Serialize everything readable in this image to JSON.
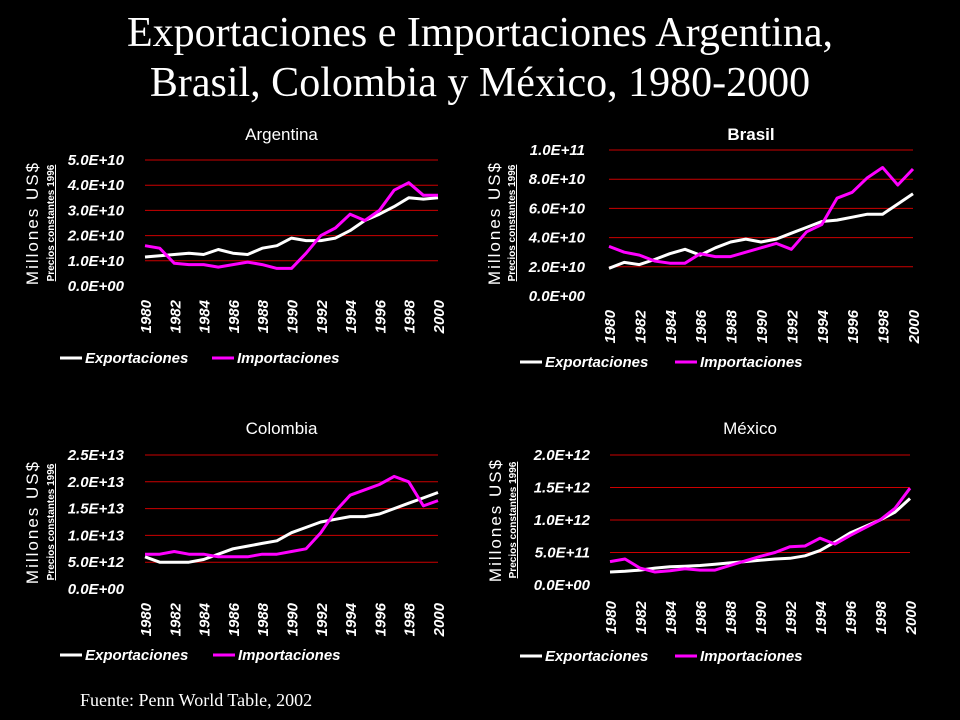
{
  "title_line1": "Exportaciones e Importaciones Argentina,",
  "title_line2": "Brasil, Colombia y México, 1980-2000",
  "source": "Fuente: Penn World Table, 2002",
  "colors": {
    "background": "#000000",
    "exportaciones": "#ffffff",
    "importaciones": "#ff00ff",
    "gridline": "#cc0000"
  },
  "chart_data": [
    {
      "type": "line",
      "title": "Argentina",
      "ylabel": "Millones US$",
      "ylabel_sub": "Precios constantes 1996",
      "x": [
        1980,
        1981,
        1982,
        1983,
        1984,
        1985,
        1986,
        1987,
        1988,
        1989,
        1990,
        1991,
        1992,
        1993,
        1994,
        1995,
        1996,
        1997,
        1998,
        1999,
        2000
      ],
      "xticks": [
        "1980",
        "1982",
        "1984",
        "1986",
        "1988",
        "1990",
        "1992",
        "1994",
        "1996",
        "1998",
        "2000"
      ],
      "yticks": [
        "0.0E+00",
        "1.0E+10",
        "2.0E+10",
        "3.0E+10",
        "4.0E+10",
        "5.0E+10"
      ],
      "ylim": [
        0,
        50000000000
      ],
      "series": [
        {
          "name": "Exportaciones",
          "values": [
            11500000000,
            12000000000,
            12500000000,
            13000000000,
            12500000000,
            14500000000,
            13000000000,
            12500000000,
            15000000000,
            16000000000,
            19000000000,
            18000000000,
            18000000000,
            19000000000,
            22000000000,
            26000000000,
            28500000000,
            31500000000,
            35000000000,
            34500000000,
            35000000000
          ]
        },
        {
          "name": "Importaciones",
          "values": [
            16000000000,
            15000000000,
            9000000000,
            8500000000,
            8500000000,
            7500000000,
            8500000000,
            9500000000,
            8500000000,
            7000000000,
            7000000000,
            13000000000,
            20000000000,
            23000000000,
            28500000000,
            26000000000,
            30000000000,
            38000000000,
            41000000000,
            36000000000,
            36000000000
          ]
        }
      ]
    },
    {
      "type": "line",
      "title": "Brasil",
      "ylabel": "Millones US$",
      "ylabel_sub": "Precios constantes 1996",
      "x": [
        1980,
        1981,
        1982,
        1983,
        1984,
        1985,
        1986,
        1987,
        1988,
        1989,
        1990,
        1991,
        1992,
        1993,
        1994,
        1995,
        1996,
        1997,
        1998,
        1999,
        2000
      ],
      "xticks": [
        "1980",
        "1982",
        "1984",
        "1986",
        "1988",
        "1990",
        "1992",
        "1994",
        "1996",
        "1998",
        "2000"
      ],
      "yticks": [
        "0.0E+00",
        "2.0E+10",
        "4.0E+10",
        "6.0E+10",
        "8.0E+10",
        "1.0E+11"
      ],
      "ylim": [
        0,
        100000000000
      ],
      "series": [
        {
          "name": "Exportaciones",
          "values": [
            19000000000,
            23000000000,
            21500000000,
            25000000000,
            29000000000,
            32000000000,
            28000000000,
            33000000000,
            37000000000,
            39000000000,
            37000000000,
            39000000000,
            43000000000,
            47000000000,
            51000000000,
            52000000000,
            54000000000,
            56000000000,
            56000000000,
            63000000000,
            70000000000
          ]
        },
        {
          "name": "Importaciones",
          "values": [
            34000000000,
            30000000000,
            28000000000,
            24000000000,
            22500000000,
            22500000000,
            29000000000,
            27000000000,
            27000000000,
            30000000000,
            33000000000,
            36000000000,
            32000000000,
            44000000000,
            49000000000,
            67000000000,
            71000000000,
            81000000000,
            88000000000,
            76000000000,
            87000000000
          ]
        }
      ]
    },
    {
      "type": "line",
      "title": "Colombia",
      "ylabel": "Millones US$",
      "ylabel_sub": "Precios constantes 1996",
      "x": [
        1980,
        1981,
        1982,
        1983,
        1984,
        1985,
        1986,
        1987,
        1988,
        1989,
        1990,
        1991,
        1992,
        1993,
        1994,
        1995,
        1996,
        1997,
        1998,
        1999,
        2000
      ],
      "xticks": [
        "1980",
        "1982",
        "1984",
        "1986",
        "1988",
        "1990",
        "1992",
        "1994",
        "1996",
        "1998",
        "2000"
      ],
      "yticks": [
        "0.0E+00",
        "5.0E+12",
        "1.0E+13",
        "1.5E+13",
        "2.0E+13",
        "2.5E+13"
      ],
      "ylim": [
        0,
        25000000000000
      ],
      "series": [
        {
          "name": "Exportaciones",
          "values": [
            6000000000000,
            5000000000000,
            5000000000000,
            5000000000000,
            5500000000000,
            6500000000000,
            7500000000000,
            8000000000000,
            8500000000000,
            9000000000000,
            10500000000000,
            11500000000000,
            12500000000000,
            13000000000000,
            13500000000000,
            13500000000000,
            14000000000000,
            15000000000000,
            16000000000000,
            17000000000000,
            18000000000000
          ]
        },
        {
          "name": "Importaciones",
          "values": [
            6500000000000,
            6500000000000,
            7000000000000,
            6500000000000,
            6500000000000,
            6000000000000,
            6000000000000,
            6000000000000,
            6500000000000,
            6500000000000,
            7000000000000,
            7500000000000,
            10500000000000,
            14500000000000,
            17500000000000,
            18500000000000,
            19500000000000,
            21000000000000,
            20000000000000,
            15500000000000,
            16500000000000
          ]
        }
      ]
    },
    {
      "type": "line",
      "title": "México",
      "ylabel": "Millones US$",
      "ylabel_sub": "Precios constantes 1996",
      "x": [
        1980,
        1981,
        1982,
        1983,
        1984,
        1985,
        1986,
        1987,
        1988,
        1989,
        1990,
        1991,
        1992,
        1993,
        1994,
        1995,
        1996,
        1997,
        1998,
        1999,
        2000
      ],
      "xticks": [
        "1980",
        "1982",
        "1984",
        "1986",
        "1988",
        "1990",
        "1992",
        "1994",
        "1996",
        "1998",
        "2000"
      ],
      "yticks": [
        "0.0E+00",
        "5.0E+11",
        "1.0E+12",
        "1.5E+12",
        "2.0E+12"
      ],
      "ylim": [
        0,
        2000000000000
      ],
      "series": [
        {
          "name": "Exportaciones",
          "values": [
            200000000000,
            210000000000,
            230000000000,
            260000000000,
            280000000000,
            290000000000,
            300000000000,
            320000000000,
            340000000000,
            360000000000,
            380000000000,
            400000000000,
            410000000000,
            450000000000,
            530000000000,
            660000000000,
            800000000000,
            900000000000,
            1000000000000,
            1120000000000,
            1330000000000
          ]
        },
        {
          "name": "Importaciones",
          "values": [
            360000000000,
            400000000000,
            260000000000,
            200000000000,
            220000000000,
            250000000000,
            230000000000,
            230000000000,
            300000000000,
            370000000000,
            440000000000,
            500000000000,
            590000000000,
            600000000000,
            720000000000,
            630000000000,
            760000000000,
            880000000000,
            1000000000000,
            1180000000000,
            1490000000000
          ]
        }
      ]
    }
  ]
}
